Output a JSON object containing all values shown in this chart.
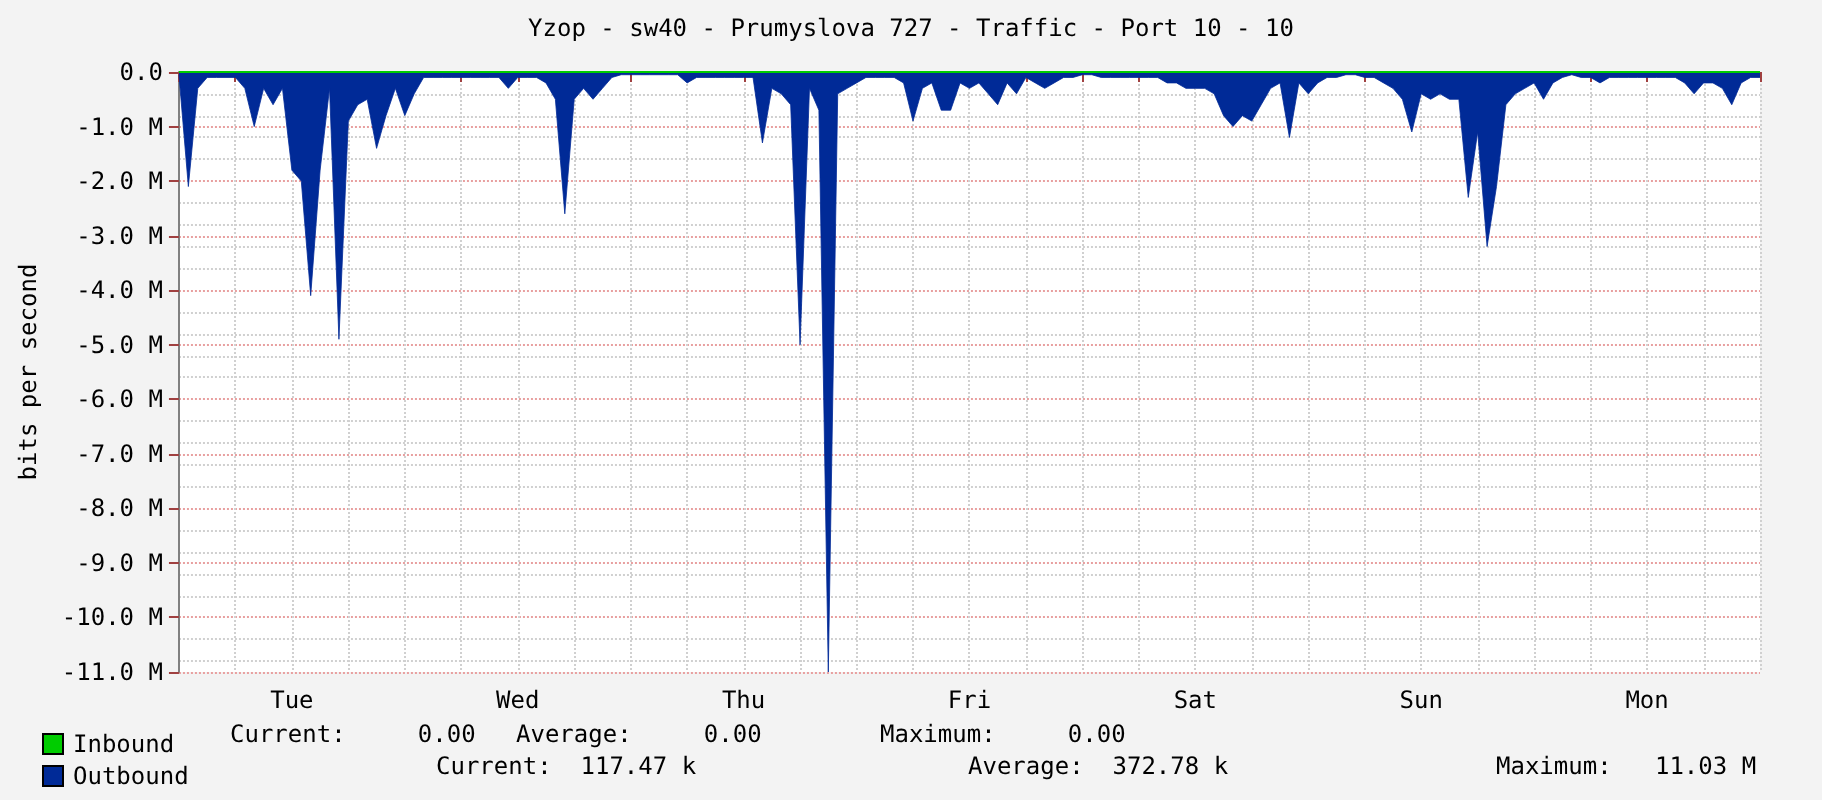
{
  "chart_data": {
    "type": "area",
    "title": "Yzop - sw40 - Prumyslova 727 - Traffic - Port 10 - 10",
    "ylabel": "bits per second",
    "categories": [
      null,
      null,
      null,
      null,
      null,
      null,
      null,
      null,
      null,
      null,
      null,
      null,
      "Tue",
      null,
      null,
      null,
      null,
      null,
      null,
      null,
      null,
      null,
      null,
      null,
      null,
      null,
      null,
      null,
      null,
      null,
      null,
      null,
      null,
      null,
      null,
      null,
      "Wed",
      null,
      null,
      null,
      null,
      null,
      null,
      null,
      null,
      null,
      null,
      null,
      null,
      null,
      null,
      null,
      null,
      null,
      null,
      null,
      null,
      null,
      null,
      null,
      "Thu",
      null,
      null,
      null,
      null,
      null,
      null,
      null,
      null,
      null,
      null,
      null,
      null,
      null,
      null,
      null,
      null,
      null,
      null,
      null,
      null,
      null,
      null,
      null,
      "Fri",
      null,
      null,
      null,
      null,
      null,
      null,
      null,
      null,
      null,
      null,
      null,
      null,
      null,
      null,
      null,
      null,
      null,
      null,
      null,
      null,
      null,
      null,
      null,
      "Sat",
      null,
      null,
      null,
      null,
      null,
      null,
      null,
      null,
      null,
      null,
      null,
      null,
      null,
      null,
      null,
      null,
      null,
      null,
      null,
      null,
      null,
      null,
      null,
      "Sun",
      null,
      null,
      null,
      null,
      null,
      null,
      null,
      null,
      null,
      null,
      null,
      null,
      null,
      null,
      null,
      null,
      null,
      null,
      null,
      null,
      null,
      null,
      null,
      "Mon",
      null,
      null,
      null,
      null,
      null,
      null,
      null,
      null,
      null,
      null,
      null,
      null
    ],
    "ylim": [
      -11,
      0
    ],
    "yticks": [
      {
        "value": 0,
        "label": "0.0"
      },
      {
        "value": -1,
        "label": "-1.0 M"
      },
      {
        "value": -2,
        "label": "-2.0 M"
      },
      {
        "value": -3,
        "label": "-3.0 M"
      },
      {
        "value": -4,
        "label": "-4.0 M"
      },
      {
        "value": -5,
        "label": "-5.0 M"
      },
      {
        "value": -6,
        "label": "-6.0 M"
      },
      {
        "value": -7,
        "label": "-7.0 M"
      },
      {
        "value": -8,
        "label": "-8.0 M"
      },
      {
        "value": -9,
        "label": "-9.0 M"
      },
      {
        "value": -10,
        "label": "-10.0 M"
      },
      {
        "value": -11,
        "label": "-11.0 M"
      }
    ],
    "grid": true,
    "legend": "bottom left",
    "series": [
      {
        "name": "Inbound",
        "type": "line",
        "color": "#00cc00",
        "values": [
          0,
          0,
          0,
          0,
          0,
          0,
          0,
          0,
          0,
          0,
          0,
          0,
          0,
          0,
          0,
          0,
          0,
          0,
          0,
          0,
          0,
          0,
          0,
          0,
          0,
          0,
          0,
          0,
          0,
          0,
          0,
          0,
          0,
          0,
          0,
          0,
          0,
          0,
          0,
          0,
          0,
          0,
          0,
          0,
          0,
          0,
          0,
          0,
          0,
          0,
          0,
          0,
          0,
          0,
          0,
          0,
          0,
          0,
          0,
          0,
          0,
          0,
          0,
          0,
          0,
          0,
          0,
          0,
          0,
          0,
          0,
          0,
          0,
          0,
          0,
          0,
          0,
          0,
          0,
          0,
          0,
          0,
          0,
          0,
          0,
          0,
          0,
          0,
          0,
          0,
          0,
          0,
          0,
          0,
          0,
          0,
          0,
          0,
          0,
          0,
          0,
          0,
          0,
          0,
          0,
          0,
          0,
          0,
          0,
          0,
          0,
          0,
          0,
          0,
          0,
          0,
          0,
          0,
          0,
          0,
          0,
          0,
          0,
          0,
          0,
          0,
          0,
          0,
          0,
          0,
          0,
          0,
          0,
          0,
          0,
          0,
          0,
          0,
          0,
          0,
          0,
          0,
          0,
          0,
          0,
          0,
          0,
          0,
          0,
          0,
          0,
          0,
          0,
          0,
          0,
          0,
          0,
          0,
          0,
          0,
          0,
          0,
          0,
          0,
          0,
          0,
          0,
          0,
          0
        ]
      },
      {
        "name": "Outbound",
        "color": "#002a97",
        "values": [
          -0.05,
          -2.1,
          -0.3,
          -0.1,
          -0.1,
          -0.1,
          -0.1,
          -0.3,
          -1.0,
          -0.3,
          -0.6,
          -0.3,
          -1.8,
          -2.0,
          -4.1,
          -1.8,
          -0.3,
          -4.9,
          -0.9,
          -0.6,
          -0.5,
          -1.4,
          -0.8,
          -0.3,
          -0.8,
          -0.4,
          -0.1,
          -0.1,
          -0.1,
          -0.1,
          -0.1,
          -0.1,
          -0.1,
          -0.1,
          -0.1,
          -0.3,
          -0.1,
          -0.1,
          -0.1,
          -0.2,
          -0.5,
          -2.6,
          -0.5,
          -0.3,
          -0.5,
          -0.3,
          -0.1,
          -0.05,
          -0.05,
          -0.05,
          -0.05,
          -0.05,
          -0.05,
          -0.05,
          -0.2,
          -0.1,
          -0.1,
          -0.1,
          -0.1,
          -0.1,
          -0.1,
          -0.1,
          -1.3,
          -0.3,
          -0.4,
          -0.6,
          -5.0,
          -0.3,
          -0.7,
          -11.0,
          -0.4,
          -0.3,
          -0.2,
          -0.1,
          -0.1,
          -0.1,
          -0.1,
          -0.2,
          -0.9,
          -0.3,
          -0.2,
          -0.7,
          -0.7,
          -0.2,
          -0.3,
          -0.2,
          -0.4,
          -0.6,
          -0.2,
          -0.4,
          -0.1,
          -0.2,
          -0.3,
          -0.2,
          -0.1,
          -0.1,
          -0.05,
          -0.05,
          -0.1,
          -0.1,
          -0.1,
          -0.1,
          -0.1,
          -0.1,
          -0.1,
          -0.2,
          -0.2,
          -0.3,
          -0.3,
          -0.3,
          -0.4,
          -0.8,
          -1.0,
          -0.8,
          -0.9,
          -0.6,
          -0.3,
          -0.2,
          -1.2,
          -0.2,
          -0.4,
          -0.2,
          -0.1,
          -0.1,
          -0.05,
          -0.05,
          -0.1,
          -0.1,
          -0.2,
          -0.3,
          -0.5,
          -1.1,
          -0.4,
          -0.5,
          -0.4,
          -0.5,
          -0.5,
          -2.3,
          -1.1,
          -3.2,
          -2.1,
          -0.6,
          -0.4,
          -0.3,
          -0.2,
          -0.5,
          -0.2,
          -0.1,
          -0.05,
          -0.1,
          -0.1,
          -0.2,
          -0.1,
          -0.1,
          -0.1,
          -0.1,
          -0.1,
          -0.1,
          -0.1,
          -0.1,
          -0.2,
          -0.4,
          -0.2,
          -0.2,
          -0.3,
          -0.6,
          -0.2,
          -0.1,
          -0.1
        ]
      }
    ],
    "annotations": [
      "Current:     0.00",
      "Average:     0.00",
      "Maximum:     0.00",
      "Current:  117.47 k",
      "Average:  372.78 k",
      "Maximum:   11.03 M"
    ]
  }
}
